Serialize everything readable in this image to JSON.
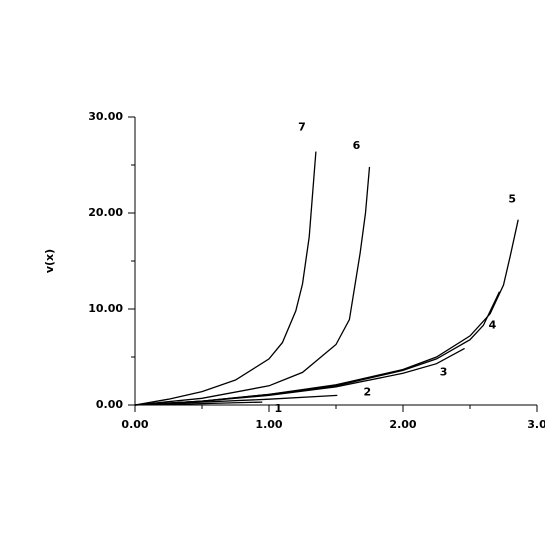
{
  "chart_data": {
    "type": "line",
    "y_label": "v(x)",
    "xlim": [
      0,
      3
    ],
    "ylim": [
      0,
      30
    ],
    "xticks": [
      {
        "value": 0,
        "label": "0.00"
      },
      {
        "value": 1,
        "label": "1.00"
      },
      {
        "value": 2,
        "label": "2.00"
      },
      {
        "value": 3,
        "label": "3.0"
      }
    ],
    "yticks": [
      {
        "value": 0,
        "label": "0.00"
      },
      {
        "value": 10,
        "label": "10.00"
      },
      {
        "value": 20,
        "label": "20.00"
      },
      {
        "value": 30,
        "label": "30.00"
      }
    ],
    "xminorticks": [
      0.5,
      1.5,
      2.5
    ],
    "yminorticks": [
      5,
      15,
      25
    ],
    "color": "#000000",
    "series": [
      {
        "name": "1",
        "x": [
          0,
          0.5,
          0.95
        ],
        "values": [
          0,
          0.15,
          0.3
        ]
      },
      {
        "name": "2",
        "x": [
          0,
          0.5,
          1,
          1.51
        ],
        "values": [
          0,
          0.3,
          0.6,
          1.0
        ]
      },
      {
        "name": "3",
        "x": [
          0,
          0.5,
          1,
          1.5,
          2,
          2.25,
          2.46
        ],
        "values": [
          0,
          0.4,
          1.0,
          1.9,
          3.3,
          4.3,
          5.9
        ]
      },
      {
        "name": "4",
        "x": [
          0,
          0.5,
          1,
          1.5,
          2,
          2.25,
          2.5,
          2.6,
          2.72
        ],
        "values": [
          0,
          0.4,
          1.1,
          2.0,
          3.6,
          4.8,
          6.8,
          8.3,
          11.8
        ]
      },
      {
        "name": "5",
        "x": [
          0,
          0.5,
          1,
          1.5,
          2,
          2.25,
          2.5,
          2.65,
          2.75,
          2.8,
          2.86
        ],
        "values": [
          0,
          0.4,
          1.1,
          2.1,
          3.7,
          5.0,
          7.2,
          9.5,
          12.5,
          15.5,
          19.3
        ]
      },
      {
        "name": "6",
        "x": [
          0,
          0.5,
          1,
          1.25,
          1.5,
          1.6,
          1.68,
          1.72,
          1.75
        ],
        "values": [
          0,
          0.7,
          2.0,
          3.4,
          6.3,
          8.9,
          15.8,
          20,
          24.8
        ]
      },
      {
        "name": "7",
        "x": [
          0,
          0.25,
          0.5,
          0.75,
          1,
          1.1,
          1.2,
          1.25,
          1.3,
          1.35
        ],
        "values": [
          0,
          0.6,
          1.4,
          2.6,
          4.8,
          6.5,
          9.8,
          12.6,
          17.5,
          26.4
        ]
      }
    ]
  }
}
